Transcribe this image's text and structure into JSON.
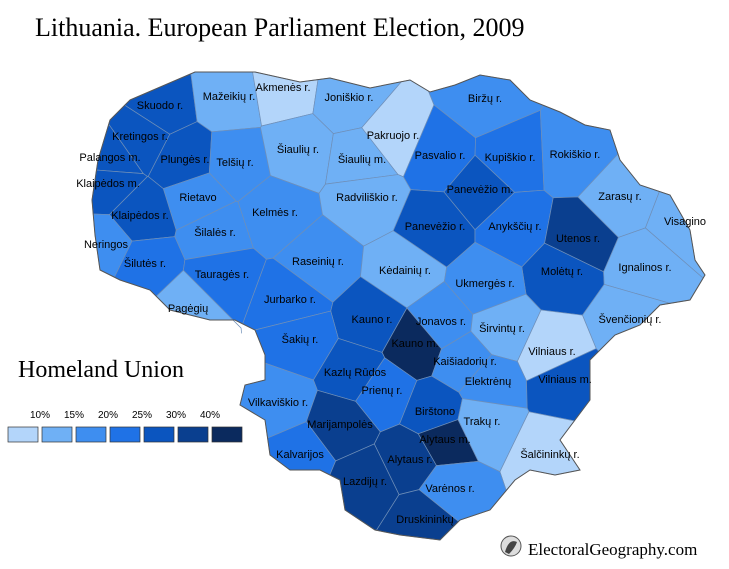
{
  "title": "Lithuania. European Parliament Election, 2009",
  "legend": {
    "title": "Homeland Union",
    "colors": [
      "#b3d5fa",
      "#6fb0f5",
      "#3e8ef0",
      "#1f72e6",
      "#0b55bf",
      "#0a3f8f",
      "#0b2a5e"
    ],
    "ticks": [
      {
        "value": 10,
        "label": "10%"
      },
      {
        "value": 15,
        "label": "15%"
      },
      {
        "value": 20,
        "label": "20%"
      },
      {
        "value": 25,
        "label": "25%"
      },
      {
        "value": 30,
        "label": "30%"
      },
      {
        "value": 40,
        "label": "40%"
      }
    ]
  },
  "regions": [
    {
      "name": "Skuodo r.",
      "color": "#0b55bf"
    },
    {
      "name": "Mažeikių r.",
      "color": "#6fb0f5"
    },
    {
      "name": "Akmenės r.",
      "color": "#b3d5fa"
    },
    {
      "name": "Joniškio r.",
      "color": "#6fb0f5"
    },
    {
      "name": "Biržų r.",
      "color": "#3e8ef0"
    },
    {
      "name": "Kretingos r.",
      "color": "#0b55bf"
    },
    {
      "name": "Palangos m.",
      "color": "#0b55bf"
    },
    {
      "name": "Plungės r.",
      "color": "#0b55bf"
    },
    {
      "name": "Telšių r.",
      "color": "#3e8ef0"
    },
    {
      "name": "Šiaulių r.",
      "color": "#6fb0f5"
    },
    {
      "name": "Šiaulių m.",
      "color": "#6fb0f5"
    },
    {
      "name": "Pakruojo r.",
      "color": "#b3d5fa"
    },
    {
      "name": "Pasvalio r.",
      "color": "#1f72e6"
    },
    {
      "name": "Kupiškio r.",
      "color": "#1f72e6"
    },
    {
      "name": "Rokiškio r.",
      "color": "#3e8ef0"
    },
    {
      "name": "Klaipėdos m.",
      "color": "#0b55bf"
    },
    {
      "name": "Rietavo",
      "color": "#3e8ef0"
    },
    {
      "name": "Kelmės r.",
      "color": "#3e8ef0"
    },
    {
      "name": "Radviliškio r.",
      "color": "#6fb0f5"
    },
    {
      "name": "Panevėžio m.",
      "color": "#0b55bf"
    },
    {
      "name": "Zarasų r.",
      "color": "#6fb0f5"
    },
    {
      "name": "Visagino",
      "color": "#6fb0f5"
    },
    {
      "name": "Klaipėdos r.",
      "color": "#0b55bf"
    },
    {
      "name": "Šilalės r.",
      "color": "#3e8ef0"
    },
    {
      "name": "Panevėžio r.",
      "color": "#0b55bf"
    },
    {
      "name": "Anykščių r.",
      "color": "#1f72e6"
    },
    {
      "name": "Utenos r.",
      "color": "#0a3f8f"
    },
    {
      "name": "Neringos",
      "color": "#3e8ef0"
    },
    {
      "name": "Šilutės r.",
      "color": "#1f72e6"
    },
    {
      "name": "Raseinių r.",
      "color": "#3e8ef0"
    },
    {
      "name": "Kėdainių r.",
      "color": "#6fb0f5"
    },
    {
      "name": "Molėtų r.",
      "color": "#0b55bf"
    },
    {
      "name": "Ignalinos r.",
      "color": "#6fb0f5"
    },
    {
      "name": "Tauragės r.",
      "color": "#1f72e6"
    },
    {
      "name": "Ukmergės r.",
      "color": "#3e8ef0"
    },
    {
      "name": "Pagėgių",
      "color": "#6fb0f5"
    },
    {
      "name": "Jurbarko r.",
      "color": "#1f72e6"
    },
    {
      "name": "Kauno r.",
      "color": "#0b55bf"
    },
    {
      "name": "Jonavos r.",
      "color": "#3e8ef0"
    },
    {
      "name": "Širvintų r.",
      "color": "#6fb0f5"
    },
    {
      "name": "Švenčionių r.",
      "color": "#6fb0f5"
    },
    {
      "name": "Šakių r.",
      "color": "#1f72e6"
    },
    {
      "name": "Kauno m.",
      "color": "#0b2a5e"
    },
    {
      "name": "Kaišiadorių r.",
      "color": "#3e8ef0"
    },
    {
      "name": "Vilniaus r.",
      "color": "#b3d5fa"
    },
    {
      "name": "Kazlų Rūdos",
      "color": "#0b55bf"
    },
    {
      "name": "Prienų r.",
      "color": "#1f72e6"
    },
    {
      "name": "Elektrėnų",
      "color": "#3e8ef0"
    },
    {
      "name": "Vilniaus m.",
      "color": "#0b55bf"
    },
    {
      "name": "Vilkaviškio r.",
      "color": "#3e8ef0"
    },
    {
      "name": "Birštono",
      "color": "#0b55bf"
    },
    {
      "name": "Trakų r.",
      "color": "#6fb0f5"
    },
    {
      "name": "Marijampolės",
      "color": "#0a3f8f"
    },
    {
      "name": "Alytaus m.",
      "color": "#0b2a5e"
    },
    {
      "name": "Kalvarijos",
      "color": "#1f72e6"
    },
    {
      "name": "Alytaus r.",
      "color": "#0a3f8f"
    },
    {
      "name": "Šalčininkų r.",
      "color": "#b3d5fa"
    },
    {
      "name": "Lazdijų r.",
      "color": "#0a3f8f"
    },
    {
      "name": "Varėnos r.",
      "color": "#3e8ef0"
    },
    {
      "name": "Druskininkų",
      "color": "#0a3f8f"
    }
  ],
  "footer": "ElectoralGeography.com"
}
